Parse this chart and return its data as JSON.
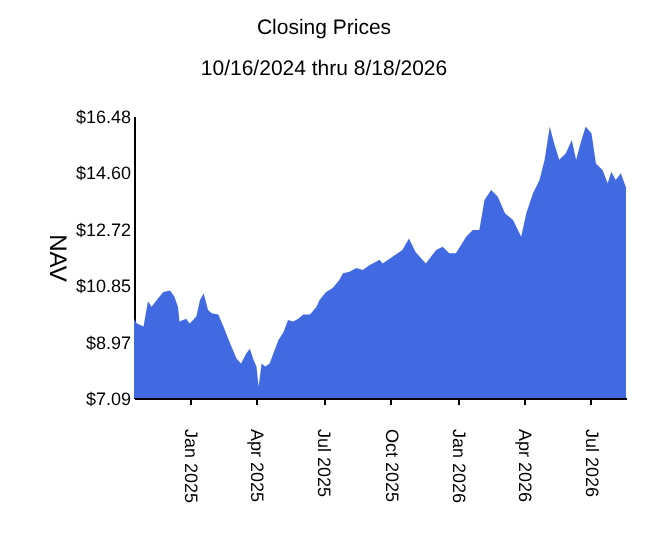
{
  "chart_data": {
    "type": "area",
    "title": "Closing Prices",
    "subtitle": "10/16/2024 thru 8/18/2026",
    "ylabel": "NAV",
    "x": [
      "2024-10-16",
      "2024-10-20",
      "2024-10-29",
      "2024-11-04",
      "2024-11-09",
      "2024-11-16",
      "2024-11-25",
      "2024-12-04",
      "2024-12-10",
      "2024-12-15",
      "2024-12-17",
      "2024-12-26",
      "2024-12-31",
      "2025-01-09",
      "2025-01-14",
      "2025-01-19",
      "2025-01-25",
      "2025-01-30",
      "2025-02-08",
      "2025-02-15",
      "2025-02-24",
      "2025-03-05",
      "2025-03-11",
      "2025-03-18",
      "2025-03-23",
      "2025-03-28",
      "2025-04-01",
      "2025-04-04",
      "2025-04-08",
      "2025-04-13",
      "2025-04-19",
      "2025-04-24",
      "2025-05-01",
      "2025-05-08",
      "2025-05-14",
      "2025-05-21",
      "2025-05-28",
      "2025-06-04",
      "2025-06-13",
      "2025-06-22",
      "2025-06-26",
      "2025-07-05",
      "2025-07-14",
      "2025-07-23",
      "2025-07-28",
      "2025-08-06",
      "2025-08-15",
      "2025-08-24",
      "2025-09-02",
      "2025-09-16",
      "2025-09-20",
      "2025-10-04",
      "2025-10-17",
      "2025-10-26",
      "2025-11-04",
      "2025-11-18",
      "2025-12-02",
      "2025-12-11",
      "2025-12-20",
      "2025-12-29",
      "2026-01-12",
      "2026-01-21",
      "2026-01-30",
      "2026-02-06",
      "2026-02-15",
      "2026-02-24",
      "2026-03-06",
      "2026-03-17",
      "2026-03-28",
      "2026-04-04",
      "2026-04-13",
      "2026-04-22",
      "2026-04-29",
      "2026-05-06",
      "2026-05-12",
      "2026-05-19",
      "2026-05-28",
      "2026-06-05",
      "2026-06-11",
      "2026-06-17",
      "2026-06-24",
      "2026-07-02",
      "2026-07-08",
      "2026-07-17",
      "2026-07-24",
      "2026-07-29",
      "2026-08-04",
      "2026-08-11",
      "2026-08-18"
    ],
    "series": [
      {
        "color": "#4169e1",
        "values": [
          9.73,
          9.57,
          9.47,
          10.31,
          10.13,
          10.35,
          10.62,
          10.67,
          10.47,
          10.13,
          9.64,
          9.73,
          9.57,
          9.8,
          10.35,
          10.57,
          10.02,
          9.91,
          9.87,
          9.47,
          8.91,
          8.4,
          8.24,
          8.57,
          8.73,
          8.36,
          8.14,
          7.47,
          8.24,
          8.14,
          8.24,
          8.57,
          9.02,
          9.29,
          9.69,
          9.64,
          9.73,
          9.87,
          9.87,
          10.13,
          10.35,
          10.62,
          10.75,
          11.02,
          11.24,
          11.29,
          11.42,
          11.35,
          11.51,
          11.69,
          11.57,
          11.8,
          12.02,
          12.4,
          11.95,
          11.57,
          12.02,
          12.13,
          11.91,
          11.91,
          12.46,
          12.68,
          12.68,
          13.68,
          14.02,
          13.8,
          13.24,
          13.02,
          12.46,
          13.24,
          13.9,
          14.35,
          15.02,
          16.13,
          15.57,
          15.02,
          15.24,
          15.68,
          15.02,
          15.57,
          16.13,
          15.9,
          14.9,
          14.68,
          14.24,
          14.62,
          14.35,
          14.57,
          14.1
        ]
      }
    ],
    "xlim": [
      "2024-10-16",
      "2026-08-18"
    ],
    "xticks": [
      {
        "value": "2025-01-01",
        "label": "Jan 2025"
      },
      {
        "value": "2025-04-01",
        "label": "Apr 2025"
      },
      {
        "value": "2025-07-01",
        "label": "Jul 2025"
      },
      {
        "value": "2025-10-01",
        "label": "Oct 2025"
      },
      {
        "value": "2026-01-01",
        "label": "Jan 2026"
      },
      {
        "value": "2026-04-01",
        "label": "Apr 2026"
      },
      {
        "value": "2026-07-01",
        "label": "Jul 2026"
      }
    ],
    "ylim": [
      7.09,
      16.48
    ],
    "yticks": [
      {
        "value": 7.09,
        "label": "$7.09"
      },
      {
        "value": 8.97,
        "label": "$8.97"
      },
      {
        "value": 10.85,
        "label": "$10.85"
      },
      {
        "value": 12.72,
        "label": "$12.72"
      },
      {
        "value": 14.6,
        "label": "$14.60"
      },
      {
        "value": 16.48,
        "label": "$16.48"
      }
    ],
    "grid": false,
    "legend": false
  }
}
